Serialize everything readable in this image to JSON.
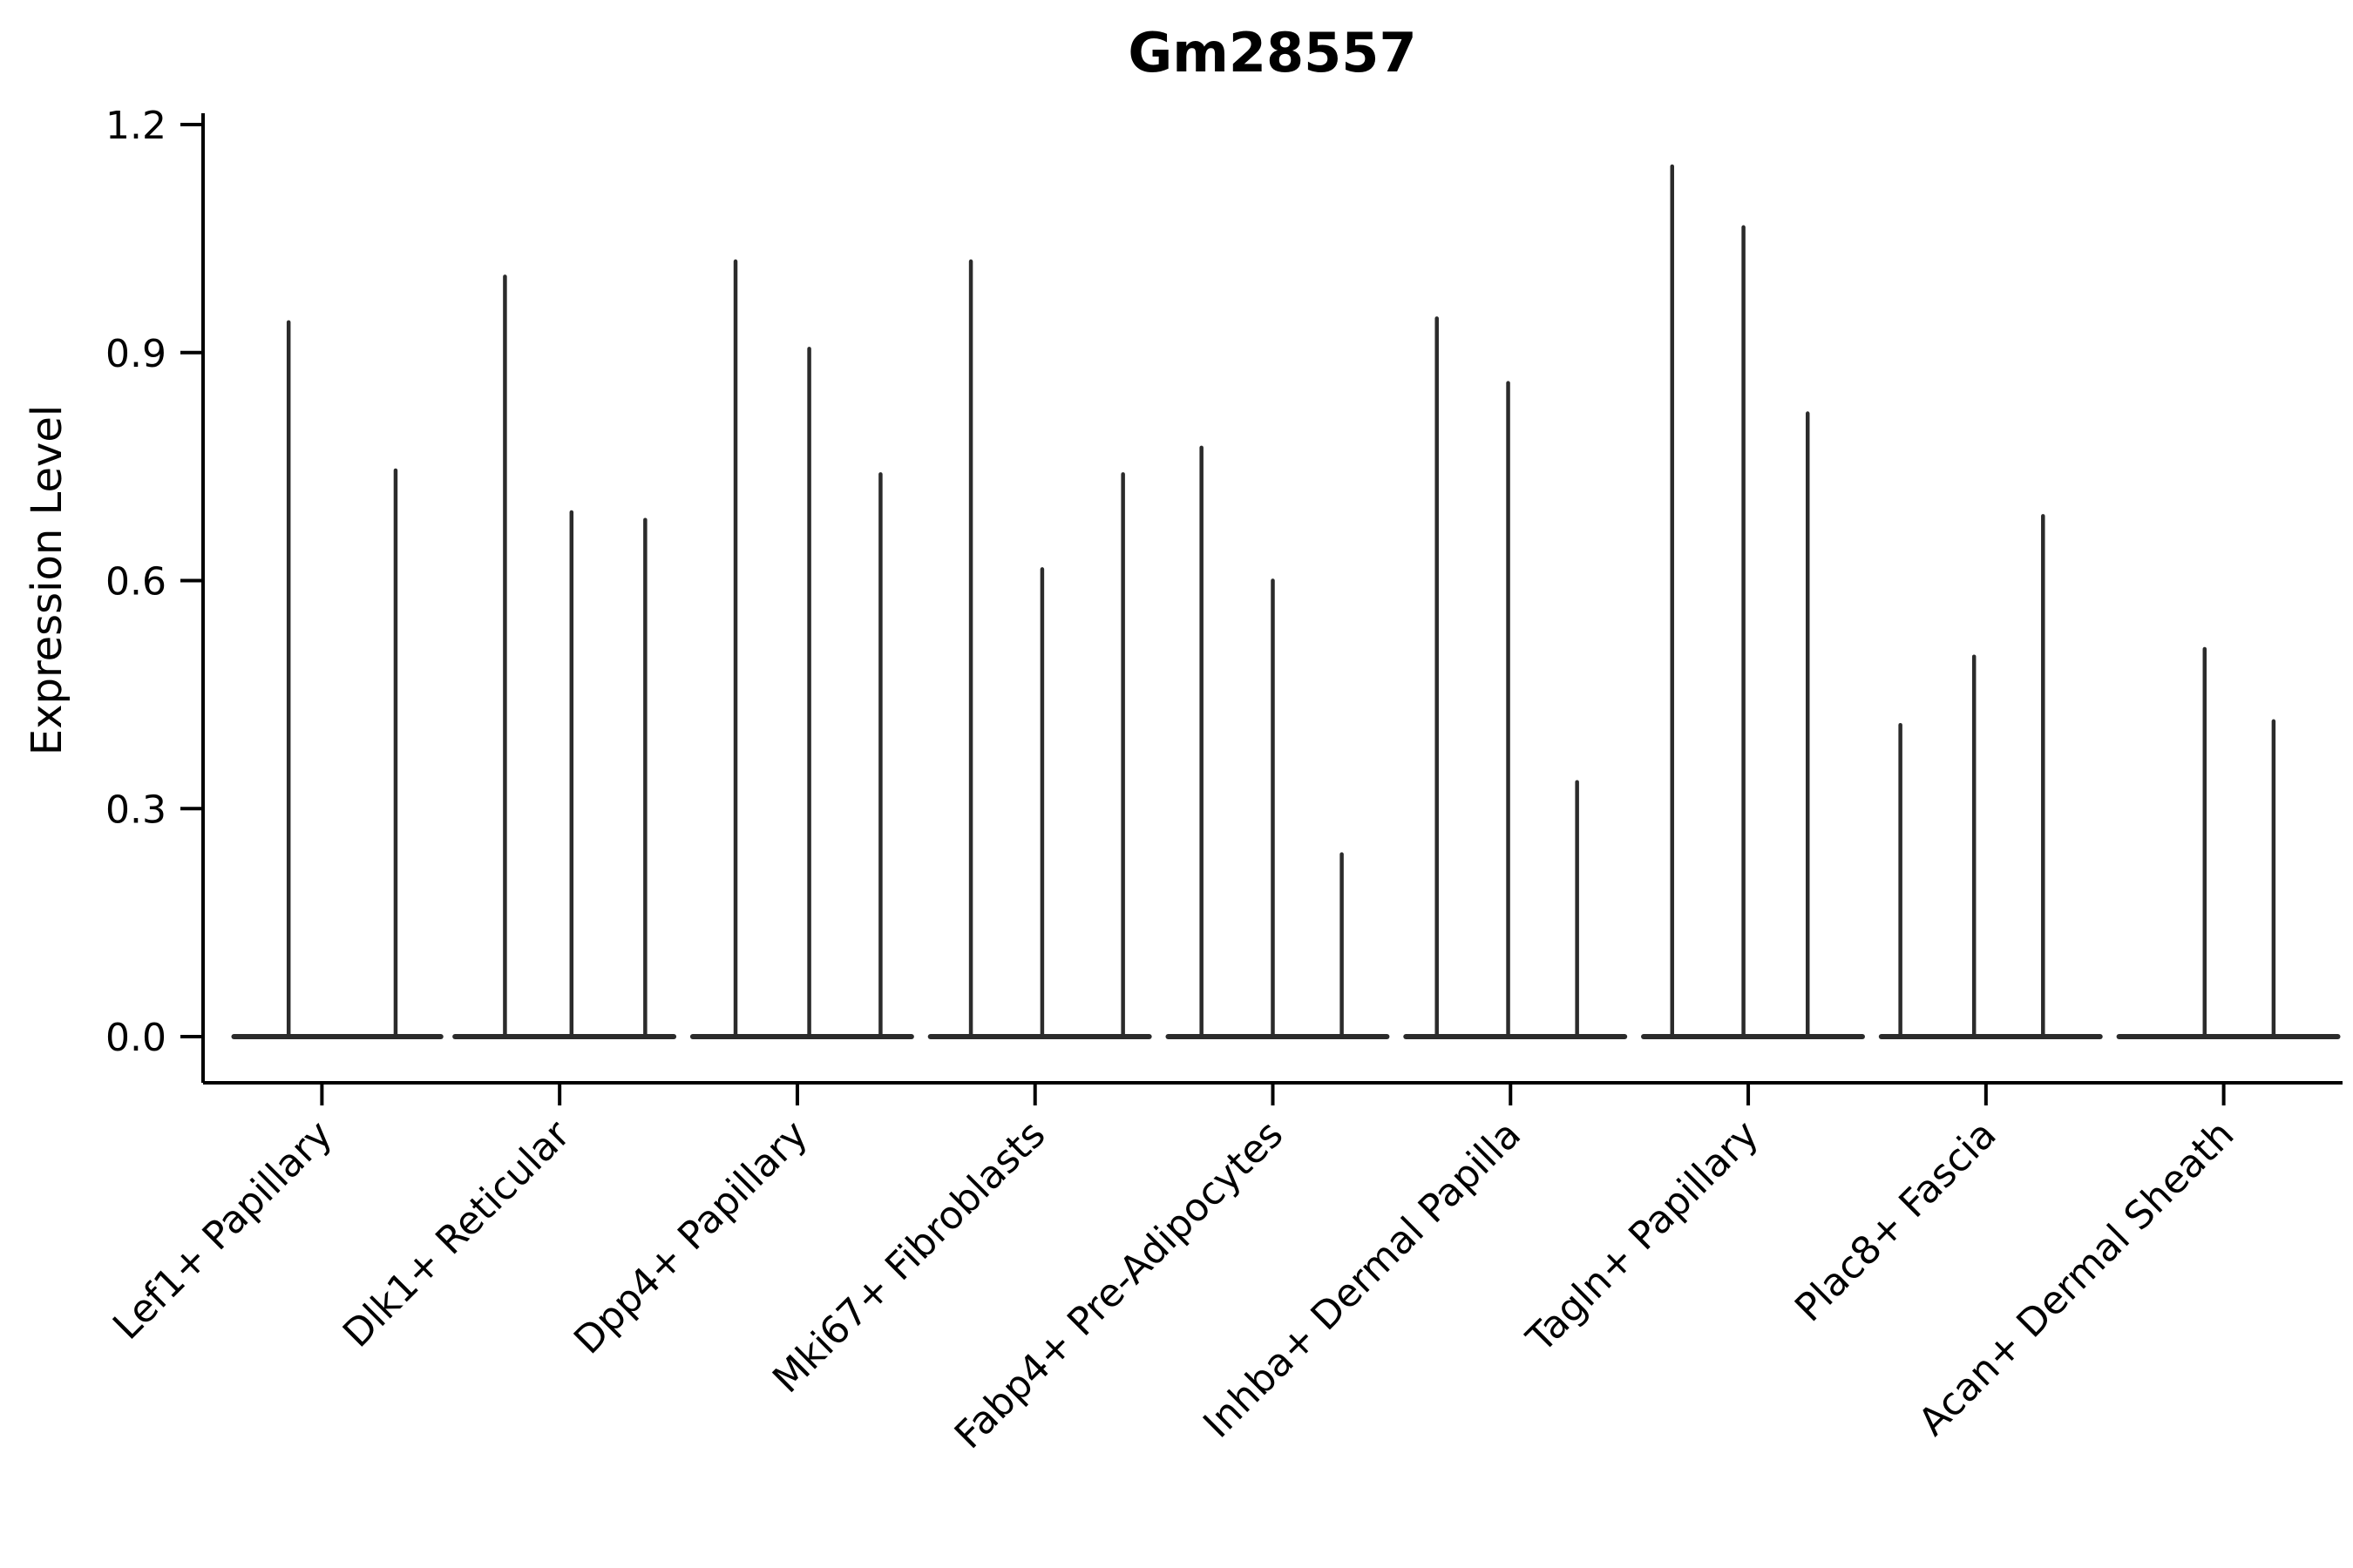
{
  "chart_data": {
    "type": "violin",
    "title": "Gm28557",
    "ylabel": "Expression Level",
    "xlabel": "",
    "ylim": [
      0,
      1.2
    ],
    "yticks": [
      0.0,
      0.3,
      0.6,
      0.9,
      1.2
    ],
    "grid": false,
    "legend": "none",
    "line_color": "#2b2b2b",
    "axis_color": "#000000",
    "categories": [
      "Lef1+ Papillary",
      "Dlk1+ Reticular",
      "Dpp4+ Papillary",
      "Mki67+ Fibroblasts",
      "Fabp4+ Pre-Adipocytes",
      "Inhba+ Dermal Papilla",
      "Tagln+ Papillary",
      "Plac8+ Fascia",
      "Acan+ Dermal Sheath"
    ],
    "groups": [
      {
        "category": "Lef1+ Papillary",
        "baseline": [
          0.13,
          1.0
        ],
        "spikes": [
          {
            "frac": 0.36,
            "value": 0.94
          },
          {
            "frac": 0.81,
            "value": 0.745
          }
        ]
      },
      {
        "category": "Dlk1+ Reticular",
        "baseline": [
          0.06,
          0.98
        ],
        "spikes": [
          {
            "frac": 0.27,
            "value": 1.0
          },
          {
            "frac": 0.55,
            "value": 0.69
          },
          {
            "frac": 0.86,
            "value": 0.68
          }
        ]
      },
      {
        "category": "Dpp4+ Papillary",
        "baseline": [
          0.06,
          0.98
        ],
        "spikes": [
          {
            "frac": 0.24,
            "value": 1.02
          },
          {
            "frac": 0.55,
            "value": 0.905
          },
          {
            "frac": 0.85,
            "value": 0.74
          }
        ]
      },
      {
        "category": "Mki67+ Fibroblasts",
        "baseline": [
          0.06,
          0.98
        ],
        "spikes": [
          {
            "frac": 0.23,
            "value": 1.02
          },
          {
            "frac": 0.53,
            "value": 0.615
          },
          {
            "frac": 0.87,
            "value": 0.74
          }
        ]
      },
      {
        "category": "Fabp4+ Pre-Adipocytes",
        "baseline": [
          0.06,
          0.98
        ],
        "spikes": [
          {
            "frac": 0.2,
            "value": 0.775
          },
          {
            "frac": 0.5,
            "value": 0.6
          },
          {
            "frac": 0.79,
            "value": 0.24
          }
        ]
      },
      {
        "category": "Inhba+ Dermal Papilla",
        "baseline": [
          0.06,
          0.98
        ],
        "spikes": [
          {
            "frac": 0.19,
            "value": 0.945
          },
          {
            "frac": 0.49,
            "value": 0.86
          },
          {
            "frac": 0.78,
            "value": 0.335
          }
        ]
      },
      {
        "category": "Tagln+ Papillary",
        "baseline": [
          0.06,
          0.98
        ],
        "spikes": [
          {
            "frac": 0.18,
            "value": 1.145
          },
          {
            "frac": 0.48,
            "value": 1.065
          },
          {
            "frac": 0.75,
            "value": 0.82
          }
        ]
      },
      {
        "category": "Plac8+ Fascia",
        "baseline": [
          0.06,
          0.98
        ],
        "spikes": [
          {
            "frac": 0.14,
            "value": 0.41
          },
          {
            "frac": 0.45,
            "value": 0.5
          },
          {
            "frac": 0.74,
            "value": 0.685
          }
        ]
      },
      {
        "category": "Acan+ Dermal Sheath",
        "baseline": [
          0.06,
          0.98
        ],
        "spikes": [
          {
            "frac": 0.42,
            "value": 0.51
          },
          {
            "frac": 0.71,
            "value": 0.415
          }
        ]
      }
    ]
  }
}
